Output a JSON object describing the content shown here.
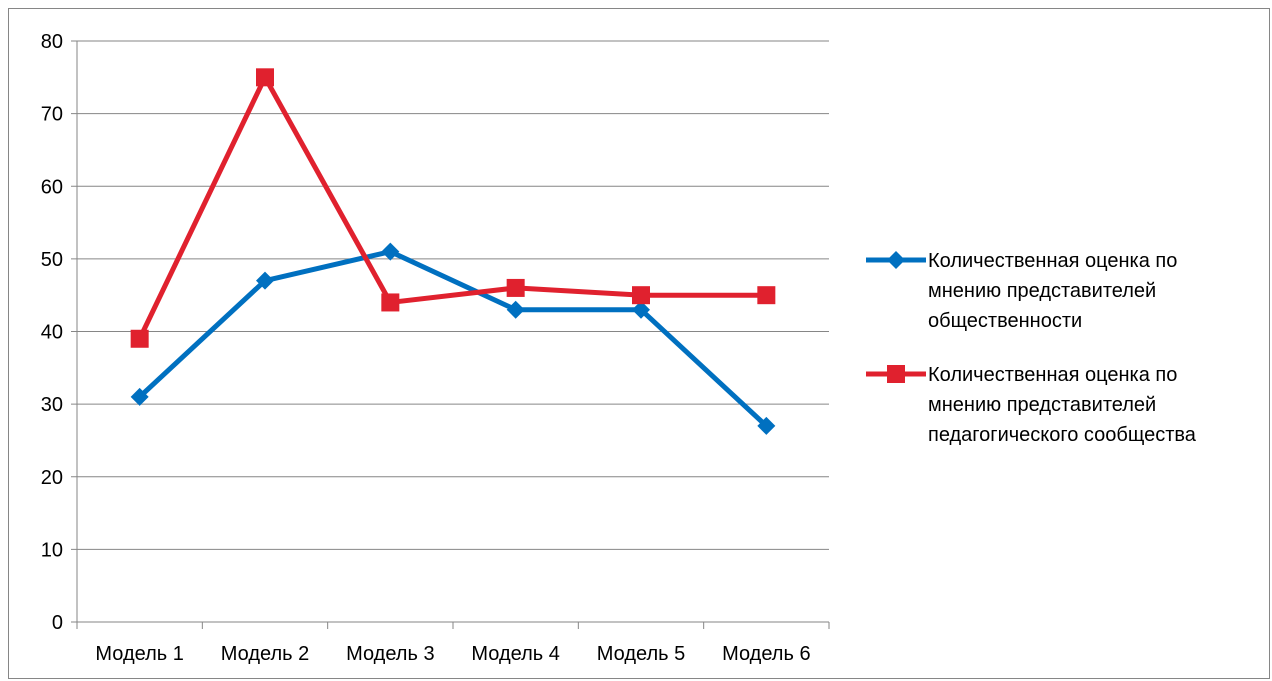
{
  "chart_data": {
    "type": "line",
    "title": "",
    "xlabel": "",
    "ylabel": "",
    "categories": [
      "Модель 1",
      "Модель 2",
      "Модель 3",
      "Модель 4",
      "Модель 5",
      "Модель 6"
    ],
    "ylim": [
      0,
      80
    ],
    "yticks": [
      0,
      10,
      20,
      30,
      40,
      50,
      60,
      70,
      80
    ],
    "grid": true,
    "legend_position": "right",
    "series": [
      {
        "name_lines": [
          "Количественная оценка по",
          "мнению представителей",
          "общественности"
        ],
        "values": [
          31,
          47,
          51,
          43,
          43,
          27
        ],
        "color": "#0070C0",
        "marker": "diamond"
      },
      {
        "name_lines": [
          "Количественная оценка по",
          "мнению представителей",
          "педагогического сообщества"
        ],
        "values": [
          39,
          75,
          44,
          46,
          45,
          45
        ],
        "color": "#E0212E",
        "marker": "square"
      }
    ]
  }
}
